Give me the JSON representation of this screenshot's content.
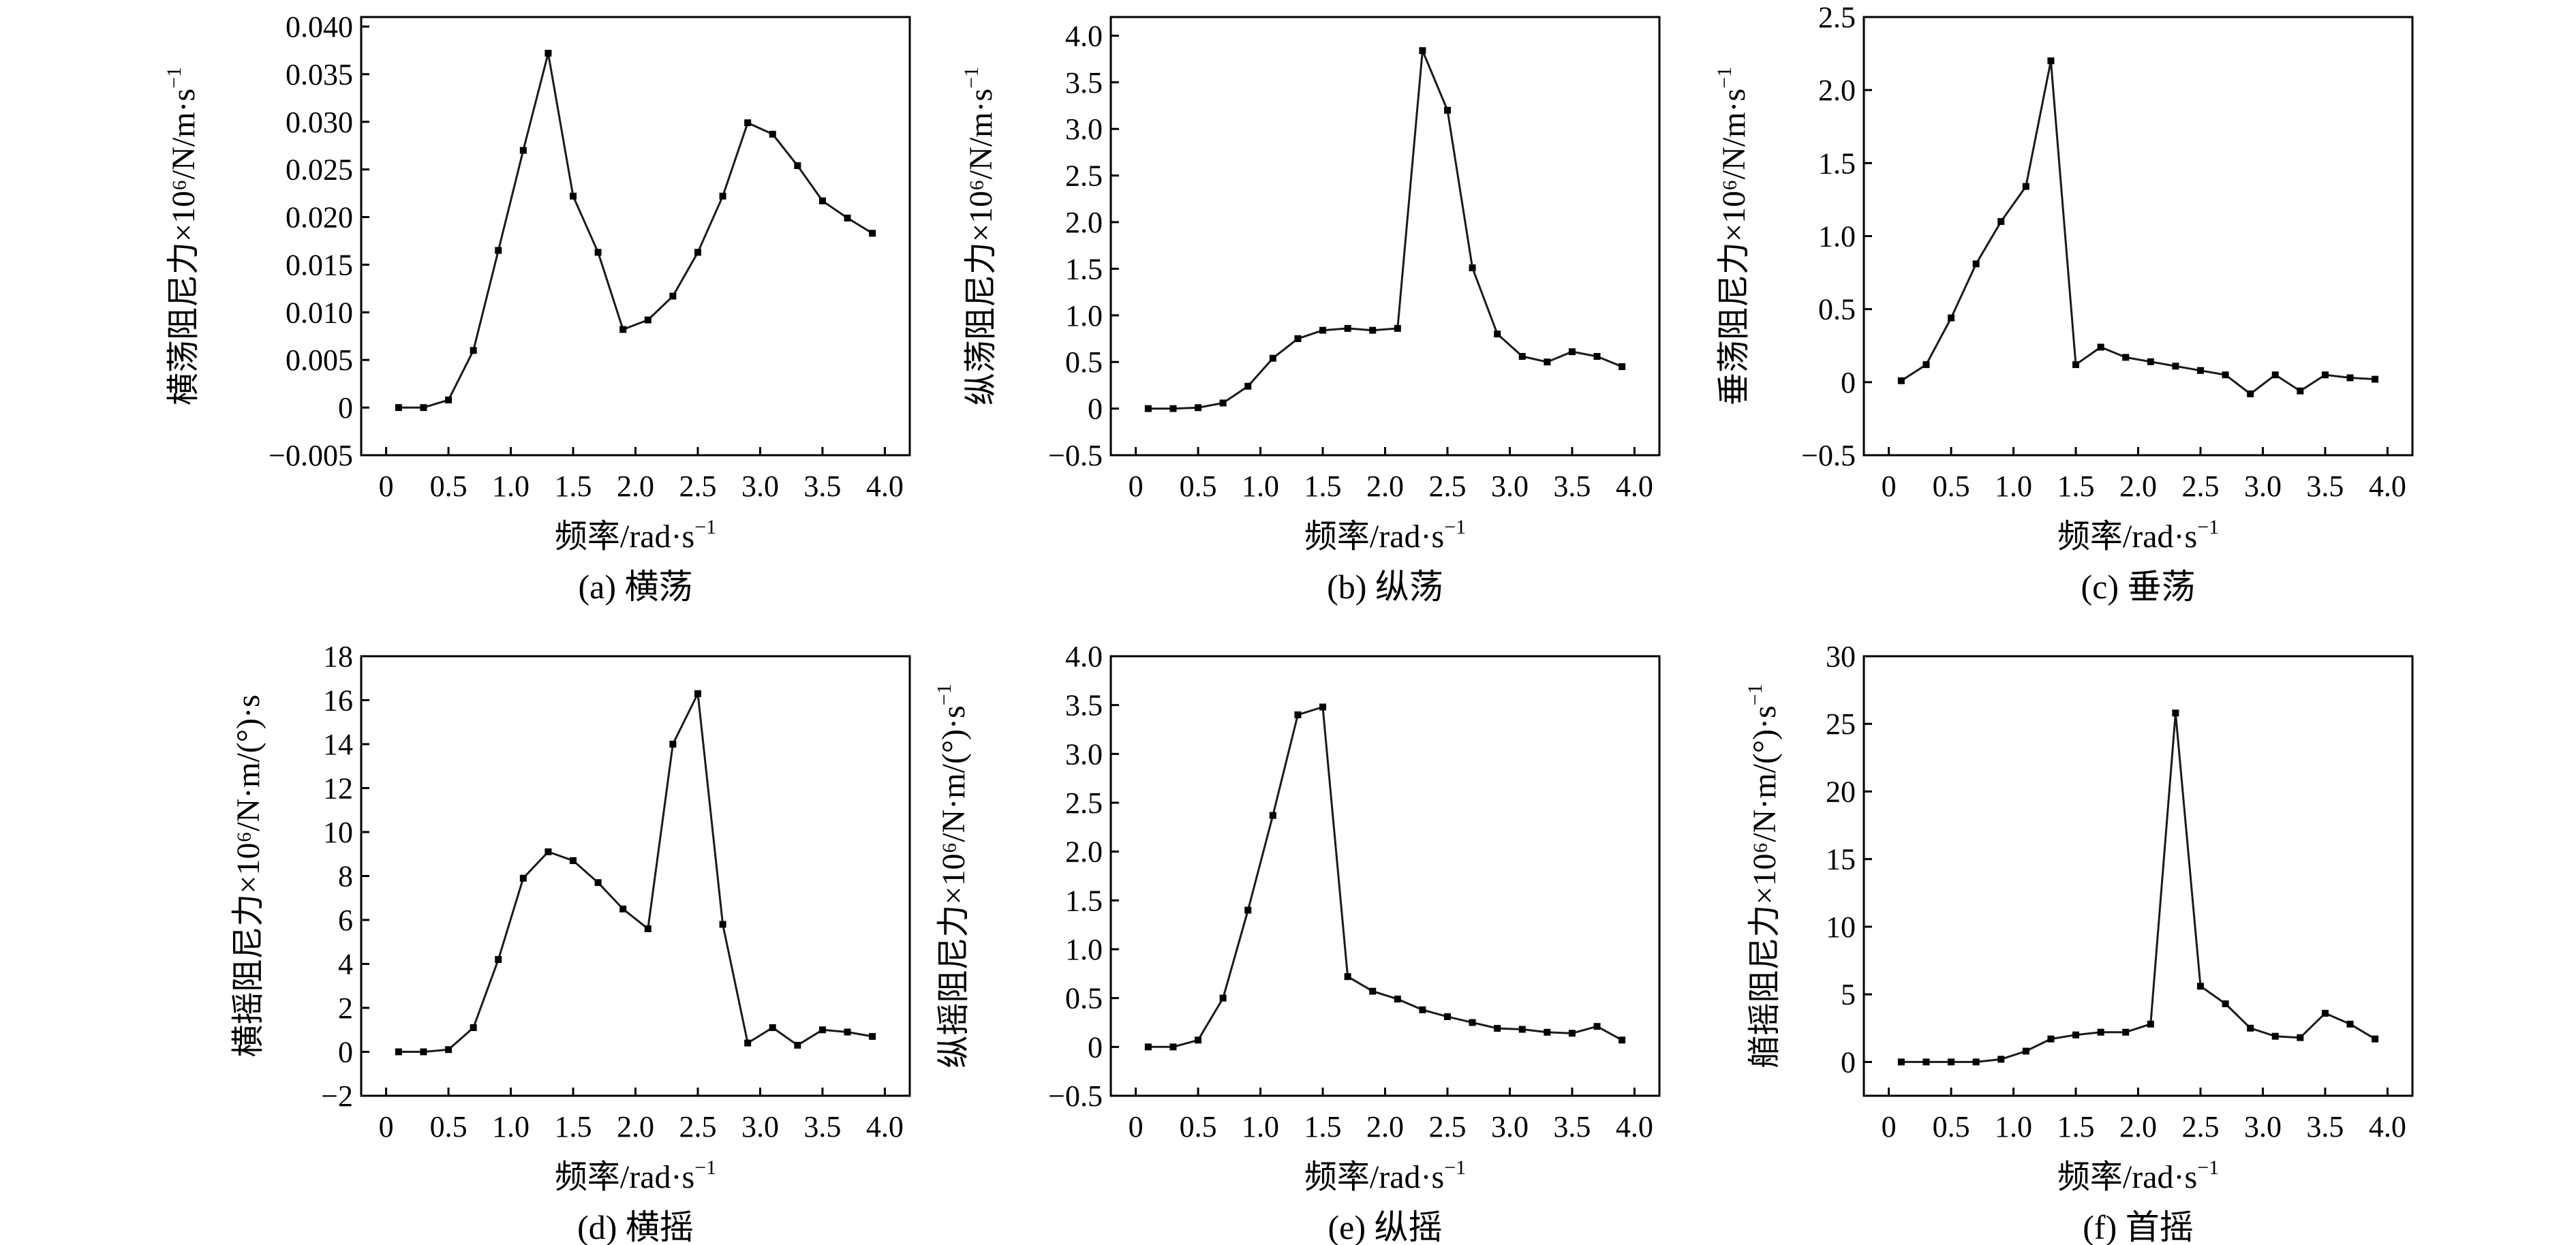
{
  "colors": {
    "line": "#1a1a1a",
    "marker": "#000000",
    "axis": "#000000",
    "background": "#ffffff"
  },
  "chart_data": [
    {
      "type": "line",
      "caption": "(a) 横荡",
      "xlabel": "频率/rad·s",
      "xlabel_sup": "−1",
      "ylabel": "横荡阻尼力×10⁶/N/m·s",
      "ylabel_sup": "−1",
      "xlim": [
        -0.2,
        4.2
      ],
      "ylim": [
        -0.005,
        0.041
      ],
      "xticks": [
        0,
        0.5,
        1.0,
        1.5,
        2.0,
        2.5,
        3.0,
        3.5,
        4.0
      ],
      "xtick_labels": [
        "0",
        "0.5",
        "1.0",
        "1.5",
        "2.0",
        "2.5",
        "3.0",
        "3.5",
        "4.0"
      ],
      "yticks": [
        -0.005,
        0,
        0.005,
        0.01,
        0.015,
        0.02,
        0.025,
        0.03,
        0.035,
        0.04
      ],
      "ytick_labels": [
        "−0.005",
        "0",
        "0.005",
        "0.010",
        "0.015",
        "0.020",
        "0.025",
        "0.030",
        "0.035",
        "0.040"
      ],
      "x": [
        0.1,
        0.3,
        0.5,
        0.7,
        0.9,
        1.1,
        1.3,
        1.5,
        1.7,
        1.9,
        2.1,
        2.3,
        2.5,
        2.7,
        2.9,
        3.1,
        3.3,
        3.5,
        3.7,
        3.9
      ],
      "y": [
        0.0,
        0.0,
        0.0008,
        0.006,
        0.0165,
        0.027,
        0.0372,
        0.0222,
        0.0163,
        0.0082,
        0.0092,
        0.0117,
        0.0163,
        0.0222,
        0.0299,
        0.0287,
        0.0254,
        0.0217,
        0.0199,
        0.0183
      ]
    },
    {
      "type": "line",
      "caption": "(b) 纵荡",
      "xlabel": "频率/rad·s",
      "xlabel_sup": "−1",
      "ylabel": "纵荡阻尼力×10⁶/N/m·s",
      "ylabel_sup": "−1",
      "xlim": [
        -0.2,
        4.2
      ],
      "ylim": [
        -0.5,
        4.2
      ],
      "xticks": [
        0,
        0.5,
        1.0,
        1.5,
        2.0,
        2.5,
        3.0,
        3.5,
        4.0
      ],
      "xtick_labels": [
        "0",
        "0.5",
        "1.0",
        "1.5",
        "2.0",
        "2.5",
        "3.0",
        "3.5",
        "4.0"
      ],
      "yticks": [
        -0.5,
        0,
        0.5,
        1.0,
        1.5,
        2.0,
        2.5,
        3.0,
        3.5,
        4.0
      ],
      "ytick_labels": [
        "−0.5",
        "0",
        "0.5",
        "1.0",
        "1.5",
        "2.0",
        "2.5",
        "3.0",
        "3.5",
        "4.0"
      ],
      "x": [
        0.1,
        0.3,
        0.5,
        0.7,
        0.9,
        1.1,
        1.3,
        1.5,
        1.7,
        1.9,
        2.1,
        2.3,
        2.5,
        2.7,
        2.9,
        3.1,
        3.3,
        3.5,
        3.7,
        3.9
      ],
      "y": [
        0.0,
        0.0,
        0.01,
        0.06,
        0.24,
        0.54,
        0.75,
        0.84,
        0.86,
        0.84,
        0.86,
        3.84,
        3.2,
        1.51,
        0.8,
        0.56,
        0.5,
        0.61,
        0.56,
        0.45
      ]
    },
    {
      "type": "line",
      "caption": "(c) 垂荡",
      "xlabel": "频率/rad·s",
      "xlabel_sup": "−1",
      "ylabel": "垂荡阻尼力×10⁶/N/m·s",
      "ylabel_sup": "−1",
      "xlim": [
        -0.2,
        4.2
      ],
      "ylim": [
        -0.5,
        2.5
      ],
      "xticks": [
        0,
        0.5,
        1.0,
        1.5,
        2.0,
        2.5,
        3.0,
        3.5,
        4.0
      ],
      "xtick_labels": [
        "0",
        "0.5",
        "1.0",
        "1.5",
        "2.0",
        "2.5",
        "3.0",
        "3.5",
        "4.0"
      ],
      "yticks": [
        -0.5,
        0,
        0.5,
        1.0,
        1.5,
        2.0,
        2.5
      ],
      "ytick_labels": [
        "−0.5",
        "0",
        "0.5",
        "1.0",
        "1.5",
        "2.0",
        "2.5"
      ],
      "x": [
        0.1,
        0.3,
        0.5,
        0.7,
        0.9,
        1.1,
        1.3,
        1.5,
        1.7,
        1.9,
        2.1,
        2.3,
        2.5,
        2.7,
        2.9,
        3.1,
        3.3,
        3.5,
        3.7,
        3.9
      ],
      "y": [
        0.01,
        0.12,
        0.44,
        0.81,
        1.1,
        1.34,
        2.2,
        0.12,
        0.24,
        0.17,
        0.14,
        0.11,
        0.08,
        0.05,
        -0.08,
        0.05,
        -0.06,
        0.05,
        0.03,
        0.02
      ]
    },
    {
      "type": "line",
      "caption": "(d) 横摇",
      "xlabel": "频率/rad·s",
      "xlabel_sup": "−1",
      "ylabel": "横摇阻尼力×10⁶/N·m/(°)·s",
      "ylabel_sup": "",
      "xlim": [
        -0.2,
        4.2
      ],
      "ylim": [
        -2,
        18
      ],
      "xticks": [
        0,
        0.5,
        1.0,
        1.5,
        2.0,
        2.5,
        3.0,
        3.5,
        4.0
      ],
      "xtick_labels": [
        "0",
        "0.5",
        "1.0",
        "1.5",
        "2.0",
        "2.5",
        "3.0",
        "3.5",
        "4.0"
      ],
      "yticks": [
        -2,
        0,
        2,
        4,
        6,
        8,
        10,
        12,
        14,
        16,
        18
      ],
      "ytick_labels": [
        "−2",
        "0",
        "2",
        "4",
        "6",
        "8",
        "10",
        "12",
        "14",
        "16",
        "18"
      ],
      "x": [
        0.1,
        0.3,
        0.5,
        0.7,
        0.9,
        1.1,
        1.3,
        1.5,
        1.7,
        1.9,
        2.1,
        2.3,
        2.5,
        2.7,
        2.9,
        3.1,
        3.3,
        3.5,
        3.7,
        3.9
      ],
      "y": [
        0.0,
        0.0,
        0.1,
        1.1,
        4.2,
        7.9,
        9.1,
        8.7,
        7.7,
        6.5,
        5.6,
        14.0,
        16.3,
        5.8,
        0.4,
        1.1,
        0.3,
        1.0,
        0.9,
        0.7
      ]
    },
    {
      "type": "line",
      "caption": "(e) 纵摇",
      "xlabel": "频率/rad·s",
      "xlabel_sup": "−1",
      "ylabel": "纵摇阻尼力×10⁶/N·m/(°)·s",
      "ylabel_sup": "−1",
      "xlim": [
        -0.2,
        4.2
      ],
      "ylim": [
        -0.5,
        4.0
      ],
      "xticks": [
        0,
        0.5,
        1.0,
        1.5,
        2.0,
        2.5,
        3.0,
        3.5,
        4.0
      ],
      "xtick_labels": [
        "0",
        "0.5",
        "1.0",
        "1.5",
        "2.0",
        "2.5",
        "3.0",
        "3.5",
        "4.0"
      ],
      "yticks": [
        -0.5,
        0,
        0.5,
        1.0,
        1.5,
        2.0,
        2.5,
        3.0,
        3.5,
        4.0
      ],
      "ytick_labels": [
        "−0.5",
        "0",
        "0.5",
        "1.0",
        "1.5",
        "2.0",
        "2.5",
        "3.0",
        "3.5",
        "4.0"
      ],
      "x": [
        0.1,
        0.3,
        0.5,
        0.7,
        0.9,
        1.1,
        1.3,
        1.5,
        1.7,
        1.9,
        2.1,
        2.3,
        2.5,
        2.7,
        2.9,
        3.1,
        3.3,
        3.5,
        3.7,
        3.9
      ],
      "y": [
        0.0,
        0.0,
        0.07,
        0.5,
        1.4,
        2.37,
        3.4,
        3.48,
        0.72,
        0.57,
        0.49,
        0.38,
        0.31,
        0.25,
        0.19,
        0.18,
        0.15,
        0.14,
        0.21,
        0.07
      ]
    },
    {
      "type": "line",
      "caption": "(f) 首摇",
      "xlabel": "频率/rad·s",
      "xlabel_sup": "−1",
      "ylabel": "艏摇阻尼力×10⁶/N·m/(°)·s",
      "ylabel_sup": "−1",
      "xlim": [
        -0.2,
        4.2
      ],
      "ylim": [
        -2.5,
        30
      ],
      "xticks": [
        0,
        0.5,
        1.0,
        1.5,
        2.0,
        2.5,
        3.0,
        3.5,
        4.0
      ],
      "xtick_labels": [
        "0",
        "0.5",
        "1.0",
        "1.5",
        "2.0",
        "2.5",
        "3.0",
        "3.5",
        "4.0"
      ],
      "yticks": [
        0,
        5,
        10,
        15,
        20,
        25,
        30
      ],
      "ytick_labels": [
        "0",
        "5",
        "10",
        "15",
        "20",
        "25",
        "30"
      ],
      "x": [
        0.1,
        0.3,
        0.5,
        0.7,
        0.9,
        1.1,
        1.3,
        1.5,
        1.7,
        1.9,
        2.1,
        2.3,
        2.5,
        2.7,
        2.9,
        3.1,
        3.3,
        3.5,
        3.7,
        3.9
      ],
      "y": [
        0.0,
        0.0,
        0.0,
        0.0,
        0.2,
        0.8,
        1.7,
        2.0,
        2.2,
        2.2,
        2.8,
        25.8,
        5.6,
        4.3,
        2.5,
        1.9,
        1.8,
        3.6,
        2.8,
        1.7
      ]
    }
  ]
}
